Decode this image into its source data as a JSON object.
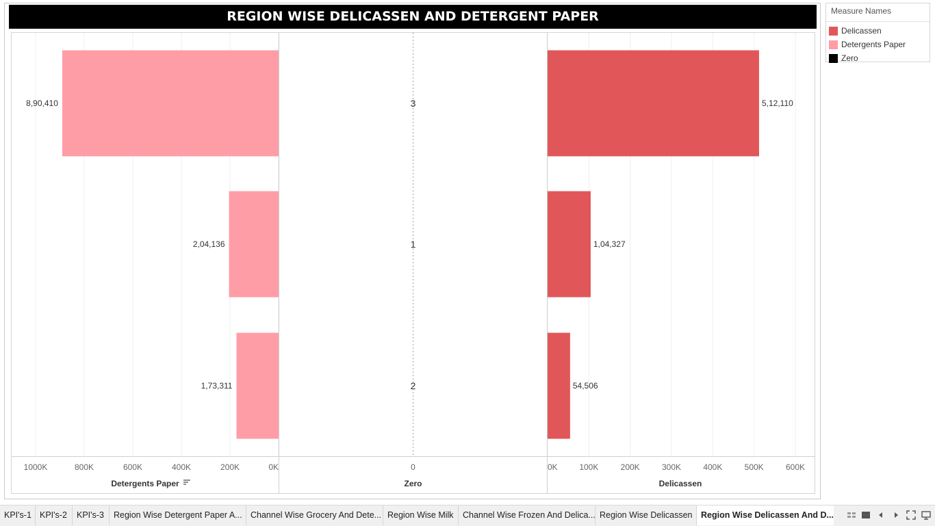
{
  "title": "REGION WISE DELICASSEN AND DETERGENT PAPER",
  "legend": {
    "title": "Measure Names",
    "items": [
      {
        "label": "Delicassen",
        "color": "#e15759"
      },
      {
        "label": "Detergents Paper",
        "color": "#ff9da7"
      },
      {
        "label": "Zero",
        "color": "#000000"
      }
    ]
  },
  "chart_data": {
    "type": "bar",
    "orientation": "horizontal",
    "categories": [
      "3",
      "1",
      "2"
    ],
    "series": [
      {
        "name": "Detergents Paper",
        "values": [
          890410,
          204136,
          173311
        ],
        "labels": [
          "8,90,410",
          "2,04,136",
          "1,73,311"
        ],
        "color": "#ff9da7",
        "direction": "reversed"
      },
      {
        "name": "Zero",
        "values": [
          0,
          0,
          0
        ]
      },
      {
        "name": "Delicassen",
        "values": [
          512110,
          104327,
          54506
        ],
        "labels": [
          "5,12,110",
          "1,04,327",
          "54,506"
        ],
        "color": "#e15759"
      }
    ],
    "axes": {
      "detergents": {
        "title": "Detergents Paper",
        "ticks": [
          "1000K",
          "800K",
          "600K",
          "400K",
          "200K",
          "0K"
        ],
        "tick_values": [
          1000000,
          800000,
          600000,
          400000,
          200000,
          0
        ],
        "range": [
          0,
          1000000
        ],
        "reversed": true
      },
      "zero": {
        "title": "Zero",
        "ticks": [
          "0"
        ]
      },
      "delicassen": {
        "title": "Delicassen",
        "ticks": [
          "0K",
          "100K",
          "200K",
          "300K",
          "400K",
          "500K",
          "600K"
        ],
        "tick_values": [
          0,
          100000,
          200000,
          300000,
          400000,
          500000,
          600000
        ],
        "range": [
          0,
          600000
        ]
      }
    },
    "grid": true
  },
  "tabs": [
    {
      "label": "KPI's-1"
    },
    {
      "label": "KPI's-2"
    },
    {
      "label": "KPI's-3"
    },
    {
      "label": "Region Wise Detergent Paper A..."
    },
    {
      "label": "Channel Wise Grocery And Dete..."
    },
    {
      "label": "Region Wise Milk"
    },
    {
      "label": "Channel Wise Frozen And Delica..."
    },
    {
      "label": "Region Wise Delicassen"
    },
    {
      "label": "Region Wise Delicassen And D..."
    }
  ],
  "active_tab": 8,
  "controls": [
    "grid-view-icon",
    "filmstrip-icon",
    "previous-icon",
    "next-icon",
    "fullscreen-icon",
    "presentation-icon"
  ]
}
